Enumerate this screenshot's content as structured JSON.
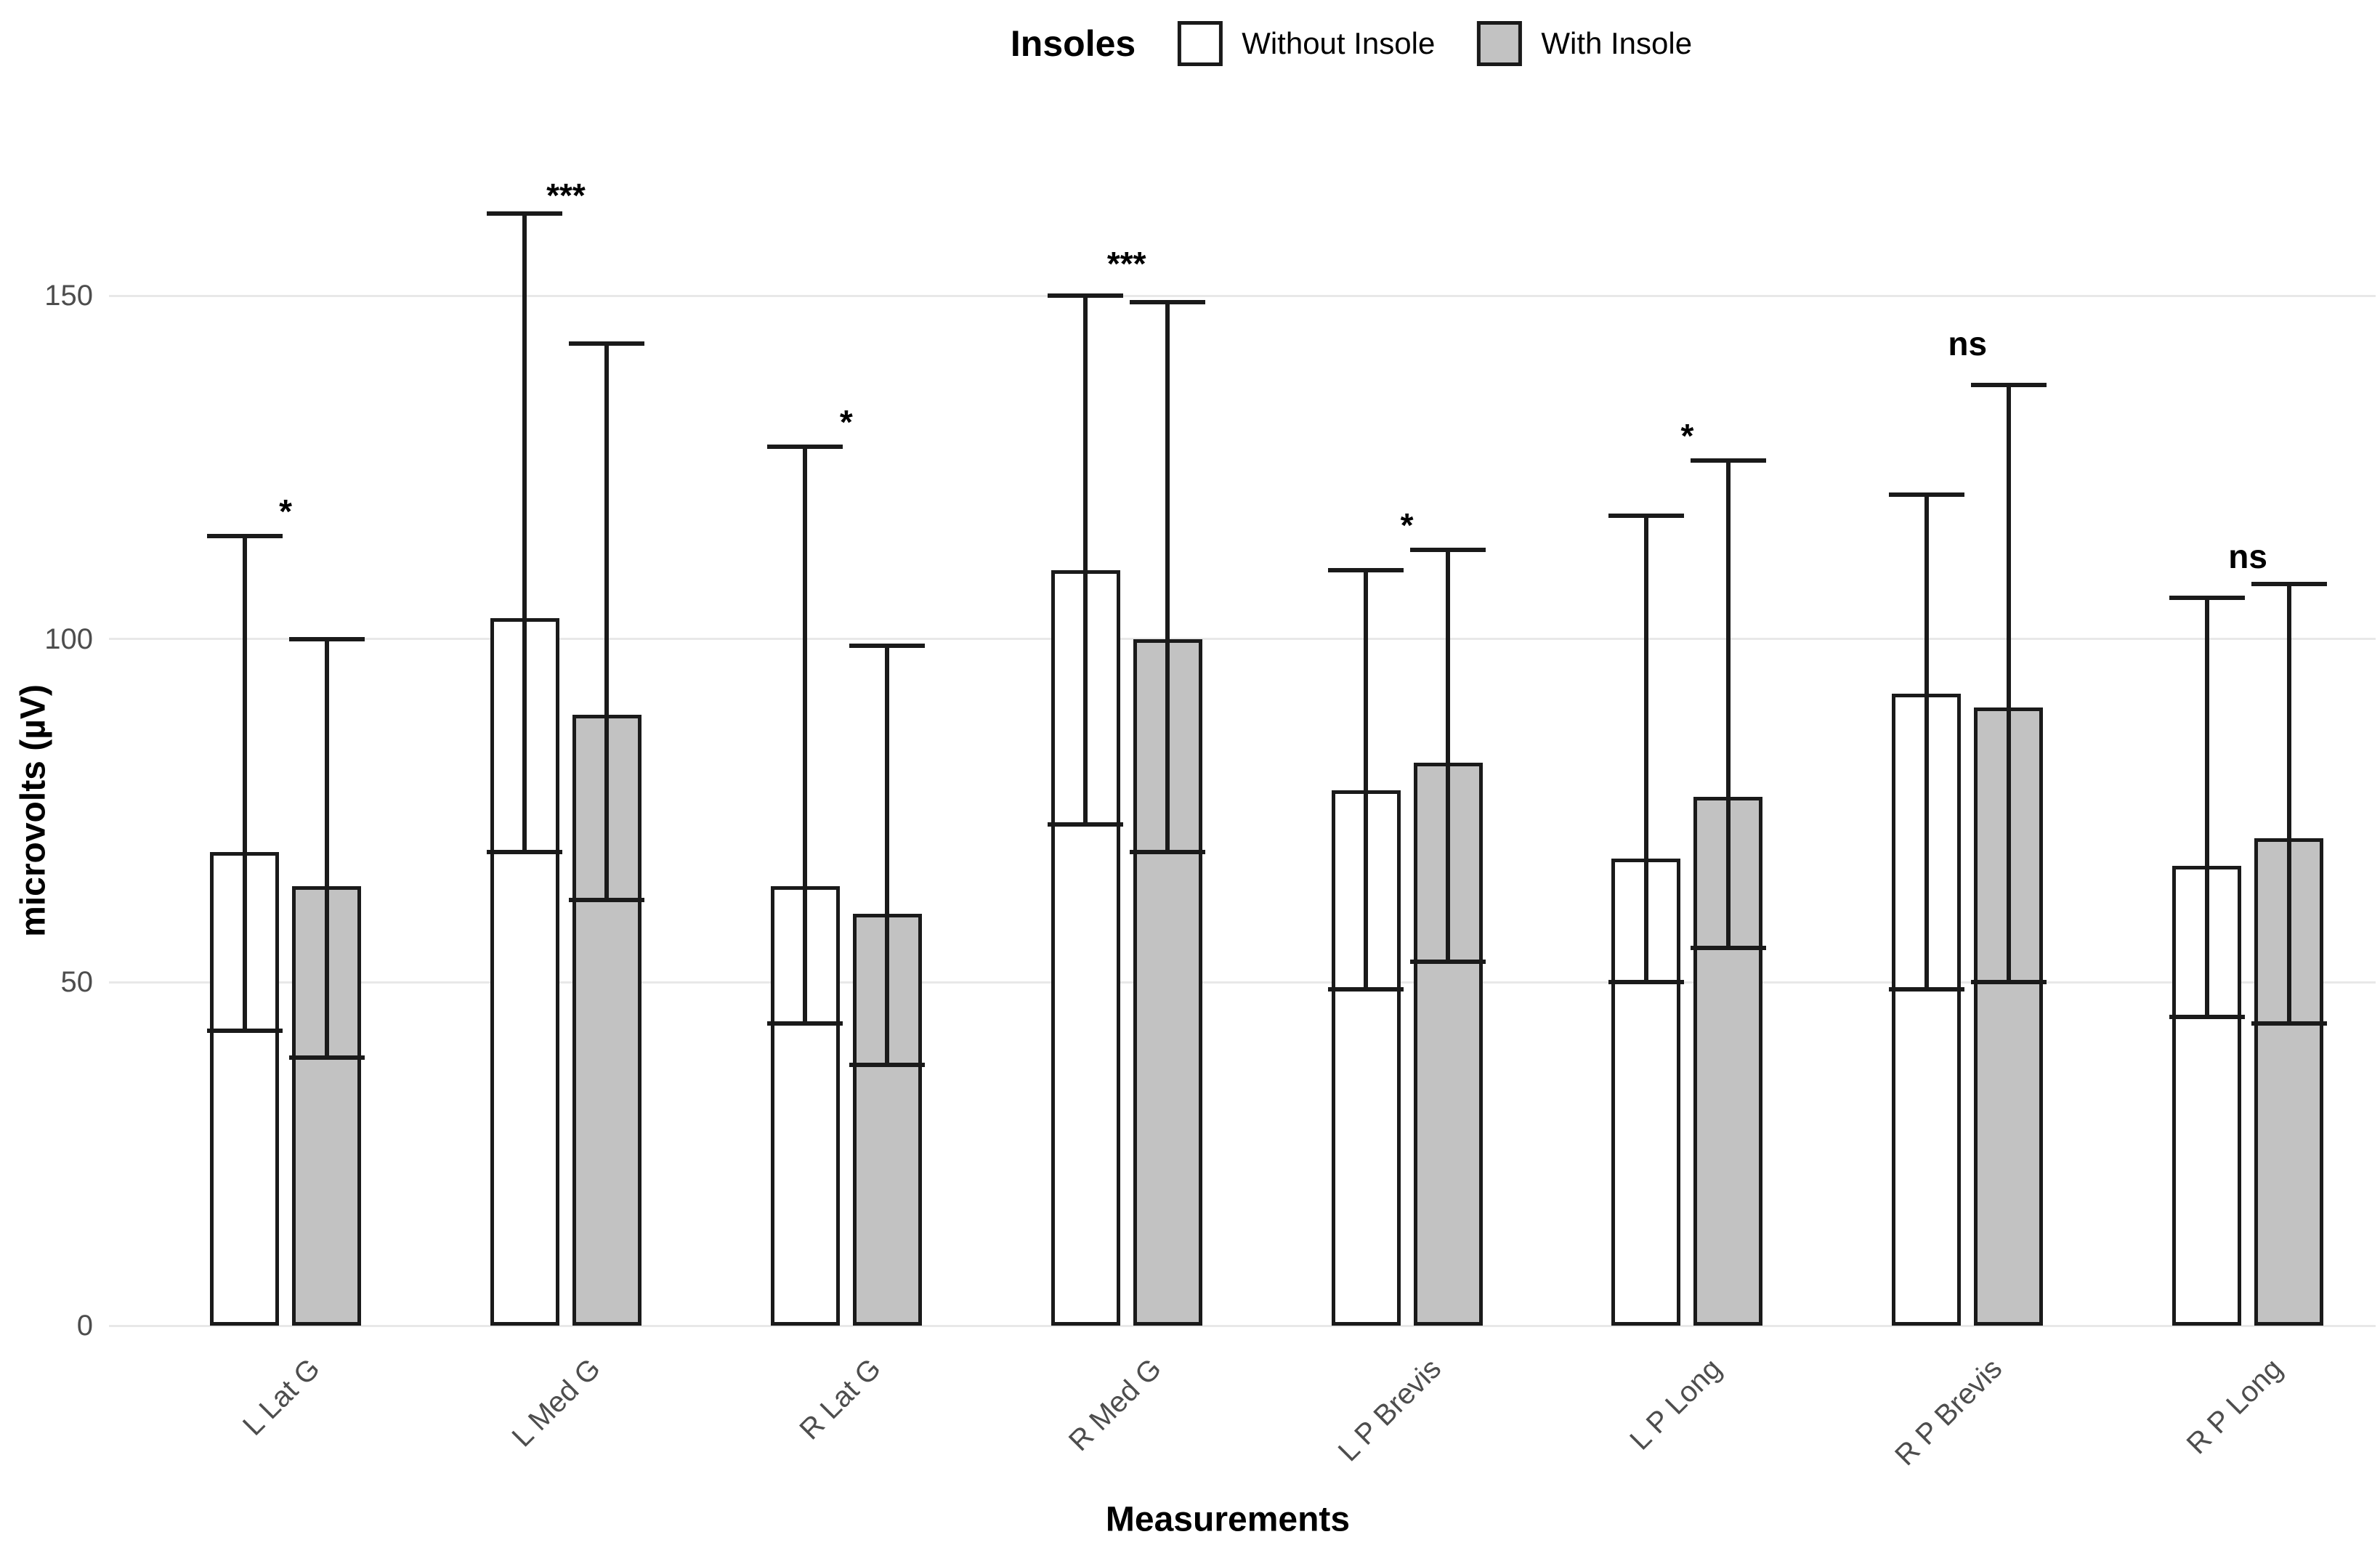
{
  "legend": {
    "title": "Insoles",
    "items": [
      {
        "label": "Without Insole",
        "fill": "#ffffff"
      },
      {
        "label": "With Insole",
        "fill": "#c2c2c2"
      }
    ]
  },
  "axes": {
    "y_title": "microvolts (µV)",
    "x_title": "Measurements",
    "y_ticks": [
      0,
      50,
      100,
      150
    ]
  },
  "colors": {
    "bar_border": "#1a1a1a",
    "grid": "#e8e8e8",
    "tick_text": "#4d4d4d",
    "white_fill": "#ffffff",
    "gray_fill": "#c2c2c2"
  },
  "chart_data": {
    "type": "bar",
    "title": "Insoles",
    "xlabel": "Measurements",
    "ylabel": "microvolts (µV)",
    "ylim": [
      0,
      168
    ],
    "grid": "horizontal-major",
    "legend_position": "top",
    "categories": [
      "L Lat G",
      "L Med G",
      "R Lat G",
      "R Med G",
      "L P Brevis",
      "L P Long",
      "R P Brevis",
      "R P Long"
    ],
    "series": [
      {
        "name": "Without Insole",
        "fill": "#ffffff",
        "values": [
          69,
          103,
          64,
          110,
          78,
          68,
          92,
          67
        ],
        "error_low": [
          43,
          69,
          44,
          73,
          49,
          50,
          49,
          45
        ],
        "error_high": [
          115,
          162,
          128,
          150,
          110,
          118,
          121,
          106
        ]
      },
      {
        "name": "With Insole",
        "fill": "#c2c2c2",
        "values": [
          64,
          89,
          60,
          100,
          82,
          77,
          90,
          71
        ],
        "error_low": [
          39,
          62,
          38,
          69,
          53,
          55,
          50,
          44
        ],
        "error_high": [
          100,
          143,
          99,
          149,
          113,
          126,
          137,
          108
        ]
      }
    ],
    "significance": [
      "*",
      "***",
      "*",
      "***",
      "*",
      "*",
      "ns",
      "ns"
    ],
    "sig_y": [
      120,
      166,
      133,
      156,
      118,
      131,
      143,
      112
    ]
  }
}
